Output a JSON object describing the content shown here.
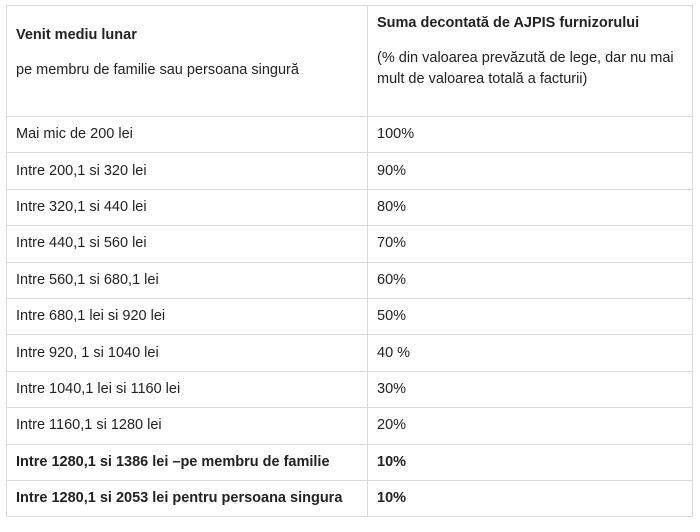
{
  "table": {
    "header": {
      "col1_title": "Venit mediu lunar",
      "col1_subtitle": "pe membru de familie sau persoana singură",
      "col2_title": "Suma decontată de AJPIS furnizorului",
      "col2_subtitle": "(% din valoarea prevăzută de lege, dar nu mai mult de valoarea totală a facturii)"
    },
    "rows": [
      {
        "income": "Mai mic de 200 lei",
        "percent": "100%",
        "bold": false
      },
      {
        "income": "Intre 200,1 si 320 lei",
        "percent": "90%",
        "bold": false
      },
      {
        "income": "Intre 320,1 si 440 lei",
        "percent": "80%",
        "bold": false
      },
      {
        "income": "Intre 440,1 si 560 lei",
        "percent": "70%",
        "bold": false
      },
      {
        "income": "Intre 560,1 si 680,1 lei",
        "percent": "60%",
        "bold": false
      },
      {
        "income": "Intre 680,1 lei si 920 lei",
        "percent": "50%",
        "bold": false
      },
      {
        "income": "Intre 920, 1 si 1040 lei",
        "percent": "40 %",
        "bold": false
      },
      {
        "income": "Intre 1040,1 lei si 1160 lei",
        "percent": "30%",
        "bold": false
      },
      {
        "income": "Intre 1160,1 si 1280 lei",
        "percent": "20%",
        "bold": false
      },
      {
        "income": "Intre 1280,1 si 1386 lei –pe membru de familie",
        "percent": "10%",
        "bold": true
      },
      {
        "income": "Intre 1280,1 si 2053 lei pentru persoana singura",
        "percent": "10%",
        "bold": true
      }
    ]
  }
}
